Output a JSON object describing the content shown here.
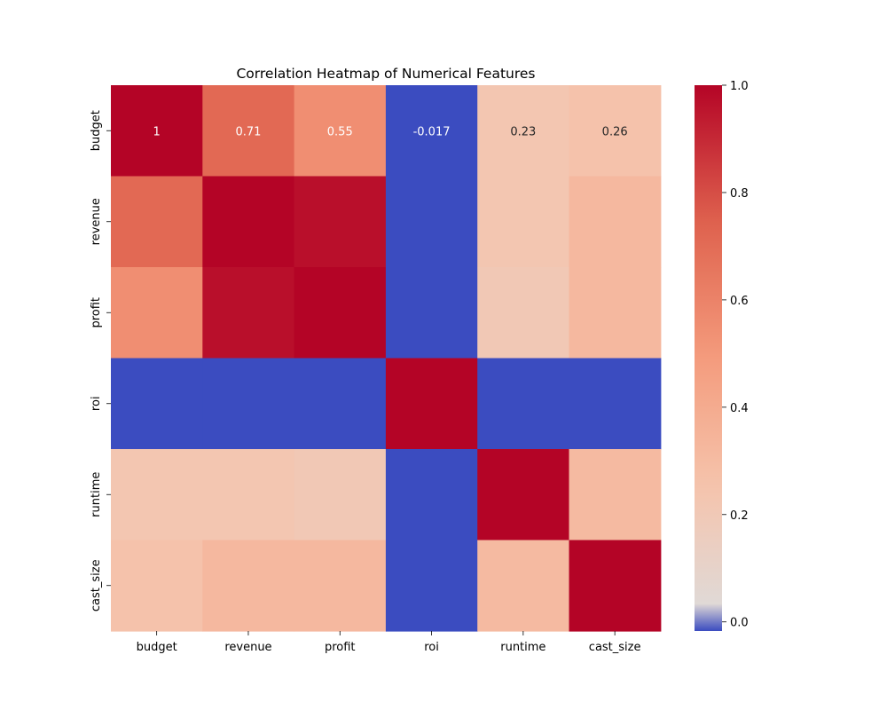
{
  "chart_data": {
    "type": "heatmap",
    "title": "Correlation Heatmap of Numerical Features",
    "xlabel": "",
    "ylabel": "",
    "x_labels": [
      "budget",
      "revenue",
      "profit",
      "roi",
      "runtime",
      "cast_size"
    ],
    "y_labels": [
      "budget",
      "revenue",
      "profit",
      "roi",
      "runtime",
      "cast_size"
    ],
    "matrix": [
      [
        1.0,
        0.71,
        0.55,
        -0.017,
        0.23,
        0.26
      ],
      [
        0.71,
        1.0,
        0.97,
        -0.017,
        0.23,
        0.32
      ],
      [
        0.55,
        0.97,
        1.0,
        -0.017,
        0.21,
        0.32
      ],
      [
        -0.017,
        -0.017,
        -0.017,
        1.0,
        -0.02,
        -0.02
      ],
      [
        0.23,
        0.23,
        0.21,
        -0.02,
        1.0,
        0.31
      ],
      [
        0.26,
        0.32,
        0.32,
        -0.02,
        0.31,
        1.0
      ]
    ],
    "annotations": [
      {
        "row": 0,
        "col": 0,
        "text": "1"
      },
      {
        "row": 0,
        "col": 1,
        "text": "0.71"
      },
      {
        "row": 0,
        "col": 2,
        "text": "0.55"
      },
      {
        "row": 0,
        "col": 3,
        "text": "-0.017"
      },
      {
        "row": 0,
        "col": 4,
        "text": "0.23"
      },
      {
        "row": 0,
        "col": 5,
        "text": "0.26"
      }
    ],
    "colormap": "coolwarm",
    "colorbar": {
      "vmin": -0.017,
      "vmax": 1.0,
      "ticks": [
        0.0,
        0.2,
        0.4,
        0.6,
        0.8,
        1.0
      ],
      "tick_labels": [
        "0.0",
        "0.2",
        "0.4",
        "0.6",
        "0.8",
        "1.0"
      ]
    }
  }
}
